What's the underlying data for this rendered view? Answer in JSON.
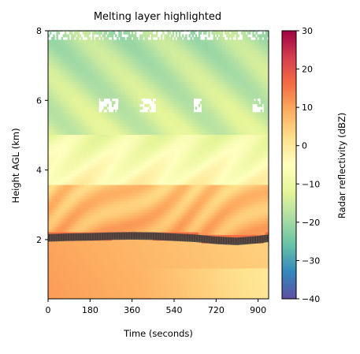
{
  "chart_data": {
    "type": "heatmap",
    "title": "Melting layer highlighted",
    "xlabel": "Time (seconds)",
    "ylabel": "Height AGL (km)",
    "xlim": [
      0,
      945
    ],
    "ylim": [
      0.3,
      8
    ],
    "xticks": [
      0,
      180,
      360,
      540,
      720,
      900
    ],
    "yticks": [
      2,
      4,
      6,
      8
    ],
    "colorbar": {
      "label": "Radar reflectivity (dBZ)",
      "colormap": "Spectral_r",
      "range": [
        -40,
        30
      ],
      "ticks": [
        -40,
        -30,
        -20,
        -10,
        0,
        10,
        20,
        30
      ]
    },
    "fields": {
      "near_surface_dbz": 10,
      "melting_layer_dbz": 16,
      "fall_streaks_dbz": 9,
      "mid_level_dbz": -3,
      "upper_level_dbz": -14,
      "no_echo_gaps_km": [
        6.0,
        7.7
      ]
    },
    "melting_layer": {
      "times_s": [
        0,
        90,
        180,
        270,
        360,
        450,
        540,
        630,
        720,
        810,
        900,
        945
      ],
      "heights_km": [
        2.05,
        2.07,
        2.08,
        2.1,
        2.11,
        2.1,
        2.07,
        2.04,
        1.98,
        1.95,
        2.0,
        2.04
      ],
      "highlight_color": "#4a4a4a"
    }
  }
}
